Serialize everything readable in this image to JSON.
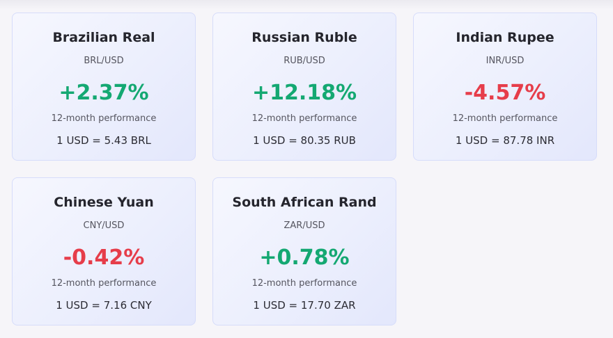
{
  "cards": [
    {
      "name": "Brazilian Real",
      "pair": "BRL/USD",
      "change": "+2.37%",
      "direction": "positive",
      "period": "12-month performance",
      "rate": "1 USD = 5.43 BRL"
    },
    {
      "name": "Russian Ruble",
      "pair": "RUB/USD",
      "change": "+12.18%",
      "direction": "positive",
      "period": "12-month performance",
      "rate": "1 USD = 80.35 RUB"
    },
    {
      "name": "Indian Rupee",
      "pair": "INR/USD",
      "change": "-4.57%",
      "direction": "negative",
      "period": "12-month performance",
      "rate": "1 USD = 87.78 INR"
    },
    {
      "name": "Chinese Yuan",
      "pair": "CNY/USD",
      "change": "-0.42%",
      "direction": "negative",
      "period": "12-month performance",
      "rate": "1 USD = 7.16 CNY"
    },
    {
      "name": "South African Rand",
      "pair": "ZAR/USD",
      "change": "+0.78%",
      "direction": "positive",
      "period": "12-month performance",
      "rate": "1 USD = 17.70 ZAR"
    }
  ],
  "colors": {
    "positive": "#14a872",
    "negative": "#e63d4a",
    "card_border": "#d6dcfa",
    "background": "#f6f5f9"
  }
}
